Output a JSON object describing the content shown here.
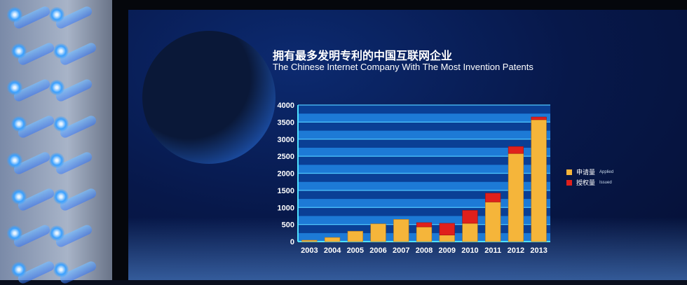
{
  "chart_data": {
    "type": "bar",
    "stacked": true,
    "title": "拥有最多发明专利的中国互联网企业",
    "subtitle": "The Chinese Internet Company With The Most Invention Patents",
    "xlabel": "",
    "ylabel": "",
    "categories": [
      "2003",
      "2004",
      "2005",
      "2006",
      "2007",
      "2008",
      "2009",
      "2010",
      "2011",
      "2012",
      "2013"
    ],
    "series": [
      {
        "name": "申请量 Applied",
        "name_cn": "申请量",
        "name_en": "Applied",
        "color": "#f5b53a",
        "values": [
          40,
          120,
          305,
          520,
          650,
          430,
          190,
          535,
          1160,
          2580,
          3570
        ]
      },
      {
        "name": "授权量 Issued",
        "name_cn": "授权量",
        "name_en": "Issued",
        "color": "#e0201c",
        "values": [
          0,
          0,
          0,
          0,
          0,
          125,
          345,
          380,
          260,
          205,
          80
        ]
      }
    ],
    "ylim": [
      0,
      4000
    ],
    "yticks": [
      "0",
      "500",
      "1000",
      "1500",
      "2000",
      "2500",
      "3000",
      "3500",
      "4000"
    ],
    "grid": true,
    "legend_position": "right"
  }
}
